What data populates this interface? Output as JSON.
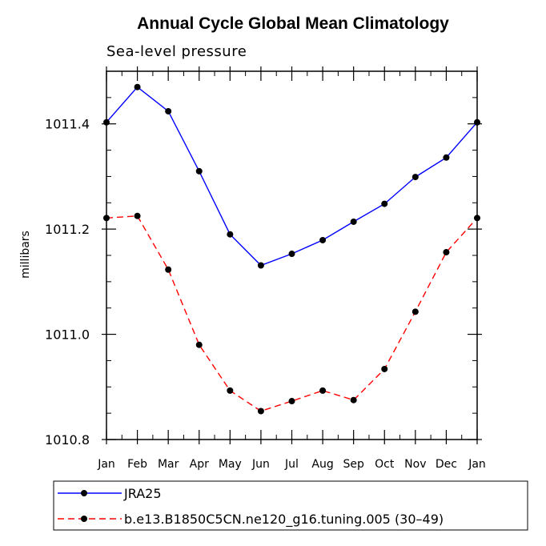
{
  "chart_data": {
    "type": "line",
    "title": "Annual Cycle Global Mean Climatology",
    "subtitle": "Sea-level pressure",
    "xlabel": "",
    "ylabel": "millibars",
    "categories": [
      "Jan",
      "Feb",
      "Mar",
      "Apr",
      "May",
      "Jun",
      "Jul",
      "Aug",
      "Sep",
      "Oct",
      "Nov",
      "Dec",
      "Jan"
    ],
    "ylim": [
      1010.8,
      1011.5
    ],
    "yticks": [
      1010.8,
      1011.0,
      1011.2,
      1011.4
    ],
    "ytick_labels": [
      "1010.8",
      "1011.0",
      "1011.2",
      "1011.4"
    ],
    "series": [
      {
        "name": "JRA25",
        "color": "#0000ff",
        "dash": "solid",
        "values": [
          1011.403,
          1011.47,
          1011.424,
          1011.31,
          1011.19,
          1011.131,
          1011.153,
          1011.179,
          1011.214,
          1011.248,
          1011.299,
          1011.336,
          1011.403
        ]
      },
      {
        "name": "b.e13.B1850C5CN.ne120_g16.tuning.005 (30–49)",
        "color": "#ff0000",
        "dash": "dashed",
        "values": [
          1011.221,
          1011.225,
          1011.123,
          1010.98,
          1010.893,
          1010.854,
          1010.873,
          1010.893,
          1010.875,
          1010.934,
          1011.043,
          1011.156,
          1011.221
        ]
      }
    ],
    "legend_position": "bottom"
  }
}
